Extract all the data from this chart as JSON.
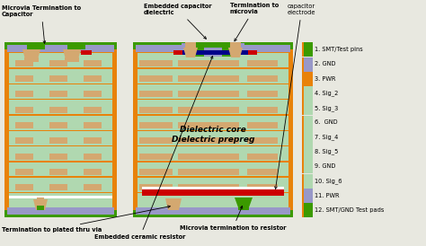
{
  "orange": "#E8820A",
  "green_dark": "#3B9A00",
  "gray_blue": "#9898C8",
  "red": "#CC0000",
  "blue_dark": "#00008A",
  "white": "#FFFFFF",
  "layer_green": "#B0D8B0",
  "copper_tan": "#D4A870",
  "bg": "#E8E8E0",
  "labels_right": [
    "1. SMT/Test pins",
    "2. GND",
    "3. PWR",
    "4. Sig_2",
    "5. Sig_3",
    "6.  GND",
    "7. Sig_4",
    "8. Sig_5",
    "9. GND",
    "10. Sig_6",
    "11. PWR",
    "12. SMT/GND Test pads"
  ],
  "legend_colors": [
    "#3B9A00",
    "#9898C8",
    "#E8820A",
    "#B0D8B0",
    "#B0D8B0",
    "#B0D8B0",
    "#B0D8B0",
    "#B0D8B0",
    "#B0D8B0",
    "#B0D8B0",
    "#9898C8",
    "#3B9A00"
  ]
}
